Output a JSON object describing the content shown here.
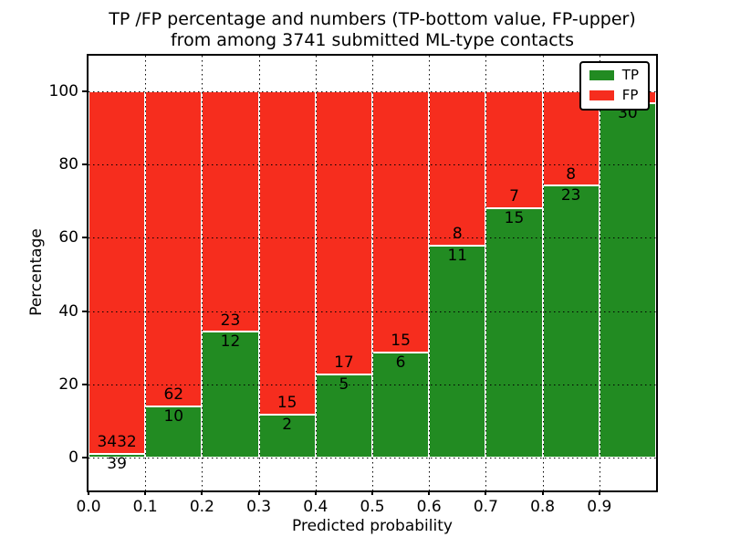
{
  "title": {
    "line1": "TP /FP percentage and numbers (TP-bottom value, FP-upper)",
    "line2": "from among 3741 submitted ML-type contacts"
  },
  "axes": {
    "xlabel": "Predicted probability",
    "ylabel": "Percentage",
    "xticks": [
      "0.0",
      "0.1",
      "0.2",
      "0.3",
      "0.4",
      "0.5",
      "0.6",
      "0.7",
      "0.8",
      "0.9"
    ],
    "yticks": [
      "0",
      "20",
      "40",
      "60",
      "80",
      "100"
    ],
    "ytick_values": [
      0,
      20,
      40,
      60,
      80,
      100
    ]
  },
  "legend": {
    "entries": [
      {
        "label": "TP",
        "color": "#228b22"
      },
      {
        "label": "FP",
        "color": "#f62d1e"
      }
    ]
  },
  "colors": {
    "tp": "#228b22",
    "fp": "#f62d1e",
    "bar_edge": "#ffffff",
    "grid": "#000000",
    "text": "#000000"
  },
  "chart_data": {
    "type": "bar",
    "stacked": true,
    "normalized_to_percent": true,
    "title": "TP /FP percentage and numbers (TP-bottom value, FP-upper) from among 3741 submitted ML-type contacts",
    "xlabel": "Predicted probability",
    "ylabel": "Percentage",
    "bins": [
      "0.0-0.1",
      "0.1-0.2",
      "0.2-0.3",
      "0.3-0.4",
      "0.4-0.5",
      "0.5-0.6",
      "0.6-0.7",
      "0.7-0.8",
      "0.8-0.9",
      "0.9-1.0"
    ],
    "series": [
      {
        "name": "TP",
        "counts": [
          39,
          10,
          12,
          2,
          5,
          6,
          11,
          15,
          23,
          30
        ]
      },
      {
        "name": "FP",
        "counts": [
          3432,
          62,
          23,
          15,
          17,
          15,
          8,
          7,
          8,
          1
        ]
      }
    ],
    "tp_percent": [
      1.12,
      13.89,
      34.29,
      11.76,
      22.73,
      28.57,
      57.89,
      68.18,
      74.19,
      96.77
    ],
    "tp_labels": [
      "39",
      "10",
      "12",
      "2",
      "5",
      "6",
      "11",
      "15",
      "23",
      "30"
    ],
    "fp_labels": [
      "3432",
      "62",
      "23",
      "15",
      "17",
      "15",
      "8",
      "7",
      "8",
      ""
    ],
    "xlim": [
      0.0,
      1.0
    ],
    "ylim": [
      -9,
      110
    ],
    "grid": true,
    "legend_position": "upper right"
  }
}
